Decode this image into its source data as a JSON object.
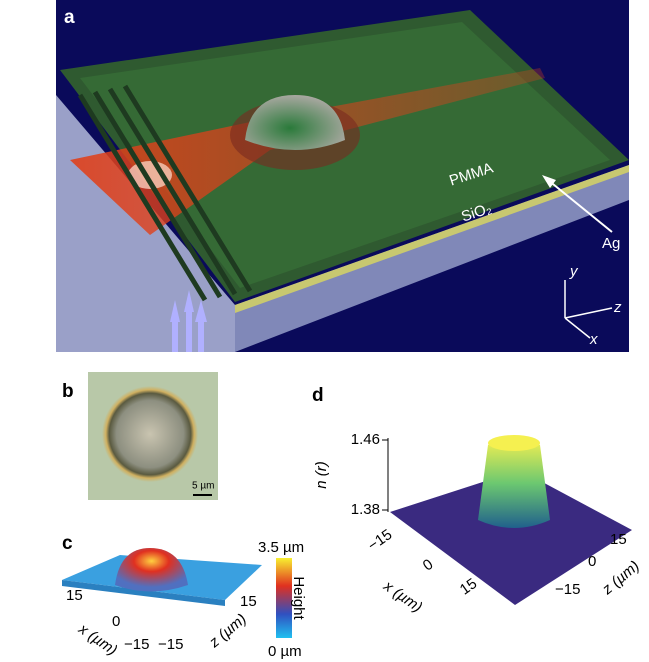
{
  "panels": {
    "a": {
      "label": "a",
      "layers": [
        "PMMA",
        "SiO₂"
      ],
      "metal": "Ag",
      "axes": [
        "y",
        "z",
        "x"
      ]
    },
    "b": {
      "label": "b",
      "scale_bar": "5 µm"
    },
    "c": {
      "label": "c",
      "colorbar": {
        "max": "3.5 µm",
        "title": "Height",
        "min": "0 µm"
      },
      "x_axis": {
        "title": "x (µm)",
        "ticks": [
          "15",
          "0",
          "−15"
        ]
      },
      "z_axis": {
        "title": "z (µm)",
        "ticks": [
          "15",
          "−15"
        ]
      }
    },
    "d": {
      "label": "d",
      "y_axis": {
        "title": "n (r)",
        "ticks": [
          "1.46",
          "1.38"
        ]
      },
      "x_axis": {
        "title": "x (µm)",
        "ticks": [
          "−15",
          "0",
          "15"
        ]
      },
      "z_axis": {
        "title": "z (µm)",
        "ticks": [
          "15",
          "0",
          "−15"
        ]
      }
    }
  }
}
